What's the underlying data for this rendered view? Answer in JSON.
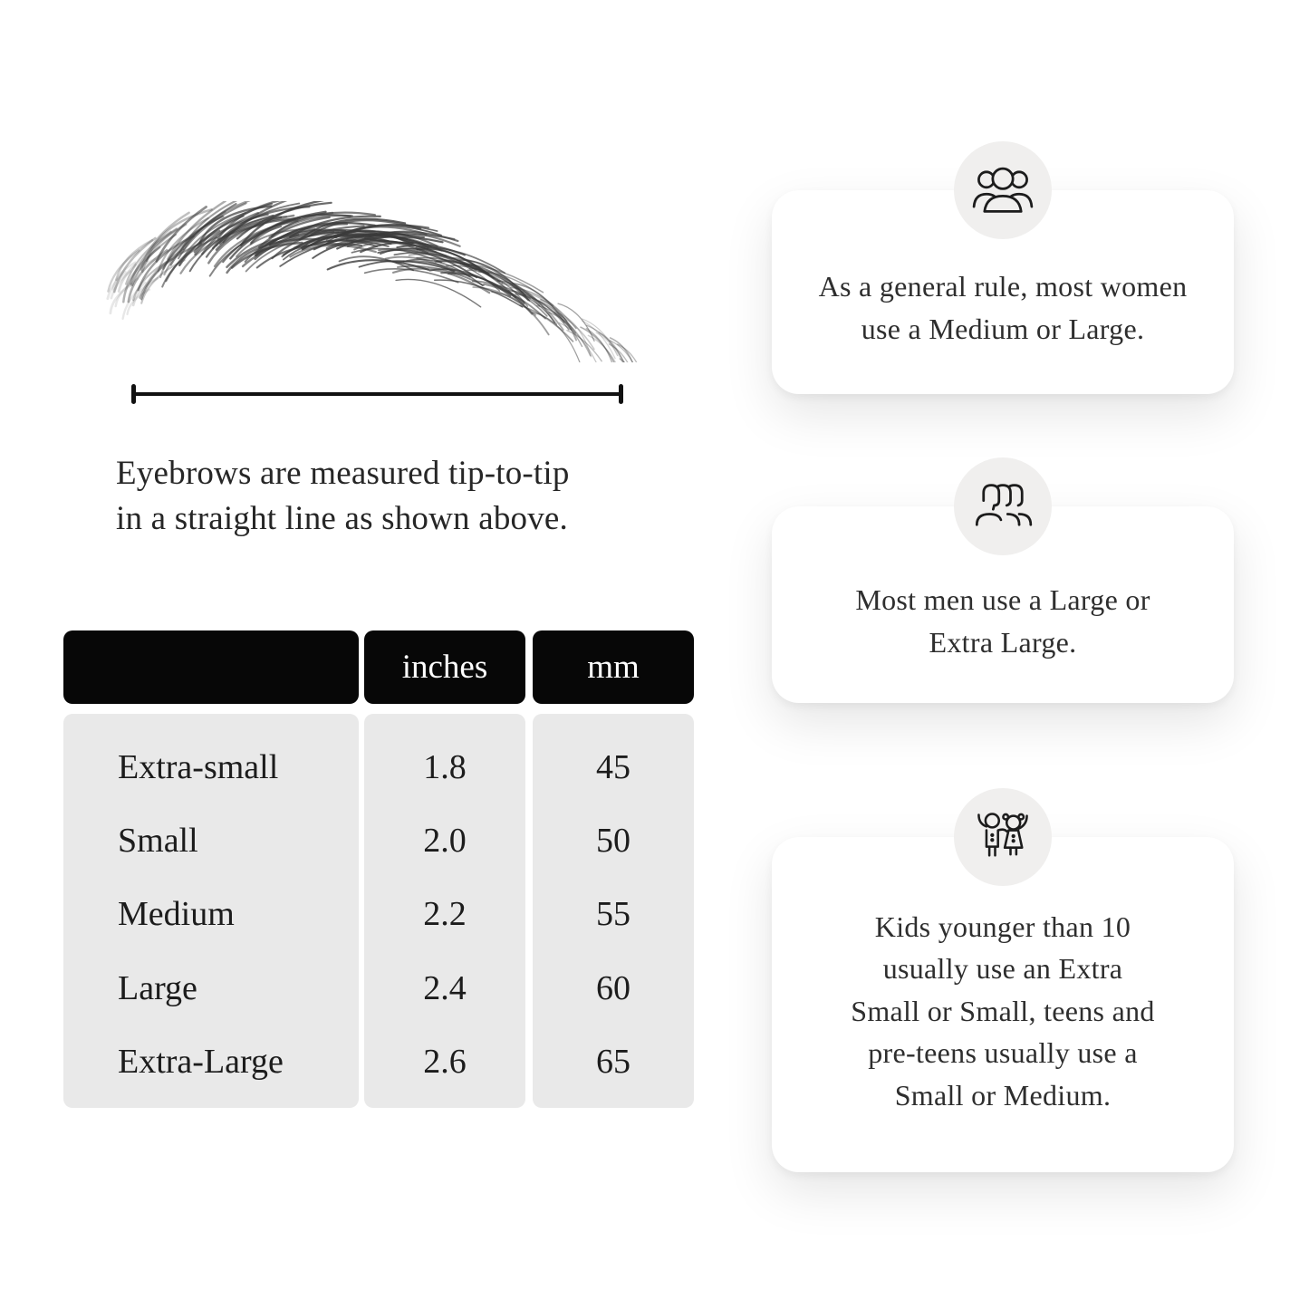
{
  "measurement": {
    "illustration": "eyebrow-sketch",
    "caption_lines": [
      "Eyebrows are measured tip-to-tip",
      "in a straight line as shown above."
    ]
  },
  "size_table": {
    "headers": [
      "",
      "inches",
      "mm"
    ],
    "rows": [
      {
        "label": "Extra-small",
        "inches": "1.8",
        "mm": "45"
      },
      {
        "label": "Small",
        "inches": "2.0",
        "mm": "50"
      },
      {
        "label": "Medium",
        "inches": "2.2",
        "mm": "55"
      },
      {
        "label": "Large",
        "inches": "2.4",
        "mm": "60"
      },
      {
        "label": "Extra-Large",
        "inches": "2.6",
        "mm": "65"
      }
    ]
  },
  "cards": [
    {
      "icon": "women-group-icon",
      "lines": [
        "As a general rule, most women",
        "use a Medium or Large."
      ],
      "text": "As a general rule, most women use a Medium or Large."
    },
    {
      "icon": "men-group-icon",
      "lines": [
        "Most men use a Large or",
        "Extra Large."
      ],
      "text": "Most men use a Large or Extra Large."
    },
    {
      "icon": "kids-icon",
      "lines": [
        "Kids younger than 10",
        "usually use an Extra",
        "Small or Small, teens and",
        "pre-teens usually use a",
        "Small or Medium."
      ],
      "text": "Kids younger than 10 usually use an Extra Small or Small, teens and pre-teens usually use a Small or Medium."
    }
  ],
  "colors": {
    "page_bg": "#ffffff",
    "table_header_bg": "#070707",
    "table_header_text": "#ffffff",
    "table_body_bg": "#e9e9e9",
    "card_bg": "#ffffff",
    "icon_circle_bg": "#f0efee",
    "text": "#232323",
    "measure_line": "#111111"
  }
}
